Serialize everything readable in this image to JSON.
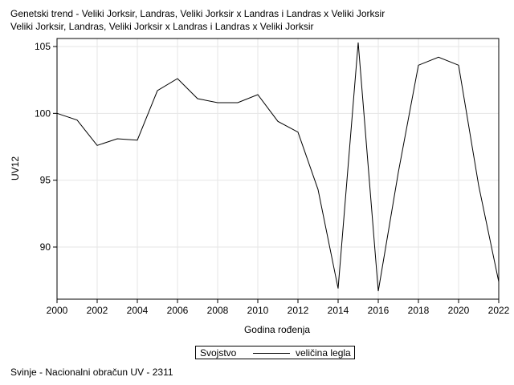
{
  "title_lines": [
    "Genetski trend - Veliki Jorksir, Landras, Veliki Jorksir x Landras i Landras x Veliki Jorksir",
    "Veliki Jorksir, Landras, Veliki Jorksir x Landras i Landras x Veliki Jorksir"
  ],
  "legend": {
    "heading": "Svojstvo",
    "label": "veličina legla"
  },
  "footnote": "Svinje - Nacionalni obračun UV - 2311",
  "chart_data": {
    "type": "line",
    "xlabel": "Godina rođenja",
    "ylabel": "UV12",
    "xlim": [
      2000,
      2022
    ],
    "ylim": [
      86.1,
      105.6
    ],
    "xticks": [
      2000,
      2002,
      2004,
      2006,
      2008,
      2010,
      2012,
      2014,
      2016,
      2018,
      2020,
      2022
    ],
    "yticks": [
      90,
      95,
      100,
      105
    ],
    "grid": true,
    "legend_position": "bottom",
    "series": [
      {
        "name": "veličina legla",
        "color": "#000000",
        "x": [
          2000,
          2001,
          2002,
          2003,
          2004,
          2005,
          2006,
          2007,
          2008,
          2009,
          2010,
          2011,
          2012,
          2013,
          2014,
          2015,
          2016,
          2017,
          2018,
          2019,
          2020,
          2021,
          2022
        ],
        "y": [
          100.0,
          99.5,
          97.6,
          98.1,
          98.0,
          101.7,
          102.6,
          101.1,
          100.8,
          100.8,
          101.4,
          99.4,
          98.6,
          94.3,
          86.9,
          105.3,
          86.7,
          95.6,
          103.6,
          104.2,
          103.6,
          94.6,
          87.4
        ]
      }
    ]
  }
}
